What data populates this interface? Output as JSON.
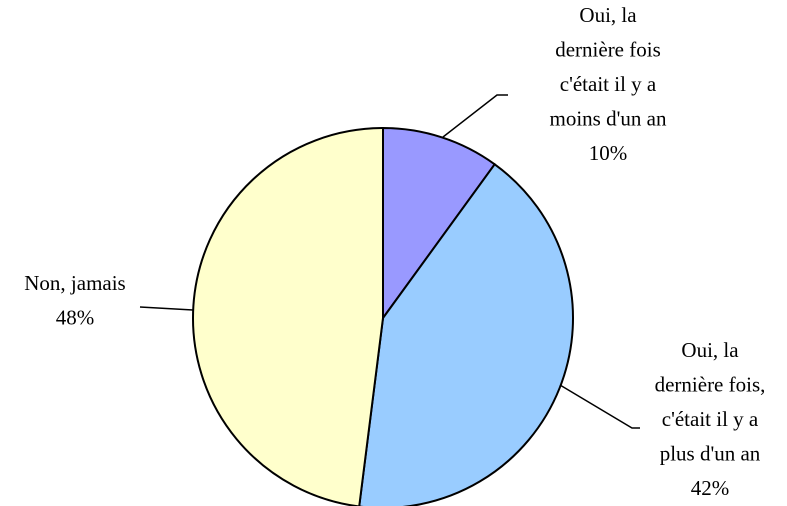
{
  "chart_data": {
    "type": "pie",
    "categories": [
      "Oui, la\ndernière fois\nc'était il y a\nmoins d'un an",
      "Oui, la\ndernière fois,\nc'était il y a\nplus d'un an",
      "Non, jamais"
    ],
    "values": [
      10,
      42,
      48
    ],
    "value_labels": [
      "10%",
      "42%",
      "48%"
    ],
    "colors": [
      "#9999ff",
      "#99ccff",
      "#ffffcc"
    ]
  }
}
